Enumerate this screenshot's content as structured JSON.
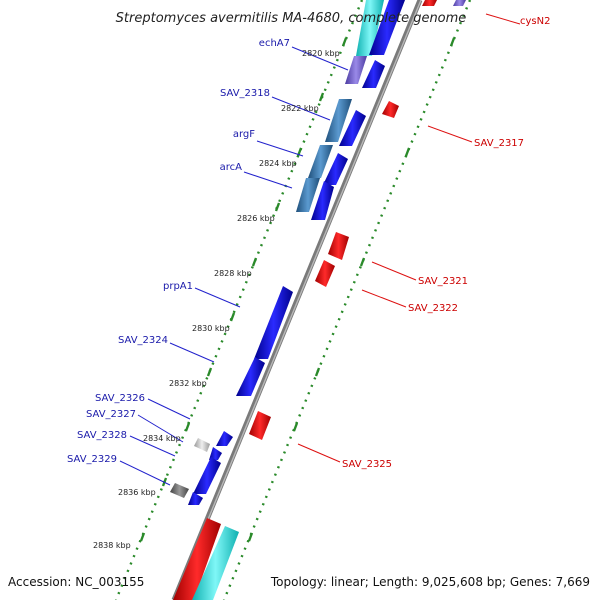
{
  "title": "Streptomyces avermitilis MA-4680, complete genome",
  "footer": {
    "accession": "Accession: NC_003155",
    "summary": "Topology: linear; Length: 9,025,608 bp; Genes: 7,669"
  },
  "kbp_ticks": [
    "2820 kbp",
    "2822 kbp",
    "2824 kbp",
    "2826 kbp",
    "2828 kbp",
    "2830 kbp",
    "2832 kbp",
    "2834 kbp",
    "2836 kbp",
    "2838 kbp"
  ],
  "left_genes": [
    "echA7",
    "SAV_2318",
    "argF",
    "arcA",
    "prpA1",
    "SAV_2324",
    "SAV_2326",
    "SAV_2327",
    "SAV_2328",
    "SAV_2329"
  ],
  "right_genes": [
    "cysN2",
    "SAV_2317",
    "SAV_2321",
    "SAV_2322",
    "SAV_2325"
  ],
  "colors": {
    "forward_gene": "#0000dd",
    "reverse_gene": "#ee0000",
    "forward_label": "#1a1aaa",
    "reverse_label": "#cc0000",
    "backbone": "#8a8a8a",
    "track_dots": "#2a8a2a",
    "cyan_band": "#33dddd",
    "steel_gene": "#3a78b0"
  }
}
